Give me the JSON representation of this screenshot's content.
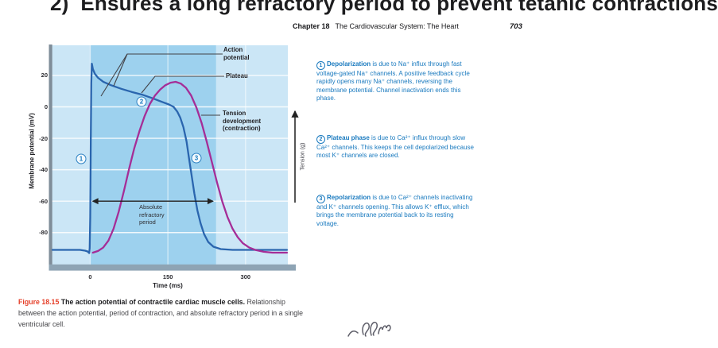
{
  "page": {
    "top_heading": "2)  Ensures a long refractory period to prevent tetanic contractions",
    "header": {
      "chapter": "Chapter 18",
      "title": "The Cardiovascular System: The Heart",
      "page_number": "703"
    }
  },
  "annotations": [
    {
      "num": "1",
      "bold": "Depolarization",
      "lines": [
        " is due to Na⁺ influx through fast",
        "voltage-gated Na⁺ channels. A positive feedback cycle",
        "rapidly opens many Na⁺ channels, reversing the",
        "membrane potential. Channel inactivation ends this",
        "phase."
      ]
    },
    {
      "num": "2",
      "bold": "Plateau phase",
      "lines": [
        " is due to Ca²⁺ influx through slow",
        "Ca²⁺ channels. This keeps the cell depolarized because",
        "most K⁺ channels are closed."
      ]
    },
    {
      "num": "3",
      "bold": "Repolarization",
      "lines": [
        " is due to Ca²⁺ channels inactivating",
        "and K⁺ channels opening. This allows K⁺ efflux, which",
        "brings the membrane potential back to its resting",
        "voltage."
      ]
    }
  ],
  "figure": {
    "caption": {
      "label": "Figure 18.15",
      "bold": " The action potential of contractile cardiac muscle cells.",
      "lines": [
        " Relationship",
        "between the action potential, period of contraction, and absolute refractory period in a single",
        "ventricular cell."
      ]
    }
  },
  "chart_data": {
    "type": "line",
    "xlabel": "Time (ms)",
    "ylabel": "Membrane potential (mV)",
    "y2label": "Tension (g)",
    "x_ticks": [
      0,
      150,
      300
    ],
    "y_ticks": [
      20,
      0,
      -20,
      -40,
      -60,
      -80
    ],
    "xlim": [
      -75,
      385
    ],
    "ylim": [
      -97,
      39
    ],
    "grid": true,
    "curve_labels": {
      "action_potential": "Action\npotential",
      "plateau": "Plateau",
      "tension": "Tension\ndevelopment\n(contraction)",
      "refractory": "Absolute\nrefractory\nperiod"
    },
    "marker_numbers": [
      "1",
      "2",
      "3"
    ],
    "absolute_refractory_period_ms": [
      0,
      243
    ],
    "series": [
      {
        "name": "Action potential (membrane potential, mV)",
        "unit": "mV",
        "color": "#2a65ae",
        "points": [
          [
            -73,
            -91
          ],
          [
            -40,
            -91
          ],
          [
            -20,
            -91
          ],
          [
            -10,
            -91.5
          ],
          [
            -5,
            -92
          ],
          [
            -2,
            -93
          ],
          [
            -1,
            -90
          ],
          [
            0,
            -70
          ],
          [
            1,
            -20
          ],
          [
            2,
            15
          ],
          [
            3,
            27.5
          ],
          [
            5,
            24
          ],
          [
            9,
            21
          ],
          [
            15,
            18.5
          ],
          [
            25,
            16
          ],
          [
            40,
            13.8
          ],
          [
            60,
            11.5
          ],
          [
            80,
            9.5
          ],
          [
            100,
            7.8
          ],
          [
            120,
            5.5
          ],
          [
            140,
            3
          ],
          [
            152,
            1.5
          ],
          [
            161,
            0
          ],
          [
            168,
            -3
          ],
          [
            174,
            -7
          ],
          [
            180,
            -13
          ],
          [
            186,
            -22
          ],
          [
            191,
            -33
          ],
          [
            196,
            -44
          ],
          [
            201,
            -55
          ],
          [
            207,
            -66
          ],
          [
            213,
            -74
          ],
          [
            220,
            -81
          ],
          [
            228,
            -86
          ],
          [
            238,
            -89
          ],
          [
            252,
            -90.5
          ],
          [
            275,
            -91
          ],
          [
            380,
            -91
          ]
        ]
      },
      {
        "name": "Tension development (contraction), relative tension %",
        "unit": "g",
        "color": "#a52d97",
        "points": [
          [
            5,
            0
          ],
          [
            15,
            1
          ],
          [
            25,
            3
          ],
          [
            35,
            7
          ],
          [
            45,
            14
          ],
          [
            55,
            24
          ],
          [
            65,
            36
          ],
          [
            75,
            49
          ],
          [
            85,
            61
          ],
          [
            95,
            71
          ],
          [
            105,
            80
          ],
          [
            115,
            87
          ],
          [
            125,
            92
          ],
          [
            135,
            95.5
          ],
          [
            145,
            98
          ],
          [
            155,
            99.5
          ],
          [
            165,
            100
          ],
          [
            175,
            99
          ],
          [
            185,
            96.5
          ],
          [
            195,
            92
          ],
          [
            205,
            85
          ],
          [
            215,
            76
          ],
          [
            225,
            65
          ],
          [
            235,
            53
          ],
          [
            245,
            41
          ],
          [
            255,
            30
          ],
          [
            265,
            21
          ],
          [
            275,
            14
          ],
          [
            285,
            9
          ],
          [
            295,
            5.5
          ],
          [
            307,
            3
          ],
          [
            320,
            1.5
          ],
          [
            335,
            0.5
          ],
          [
            352,
            0
          ],
          [
            380,
            0
          ]
        ]
      }
    ],
    "colors": {
      "plot_background": "#cbe6f6",
      "refractory_band": "#9dd1ee",
      "gridline": "#ffffff",
      "axis_spine": "#8ea4b4",
      "annotation_text": "#1a7abf",
      "figure_label_red": "#e5402a"
    }
  }
}
